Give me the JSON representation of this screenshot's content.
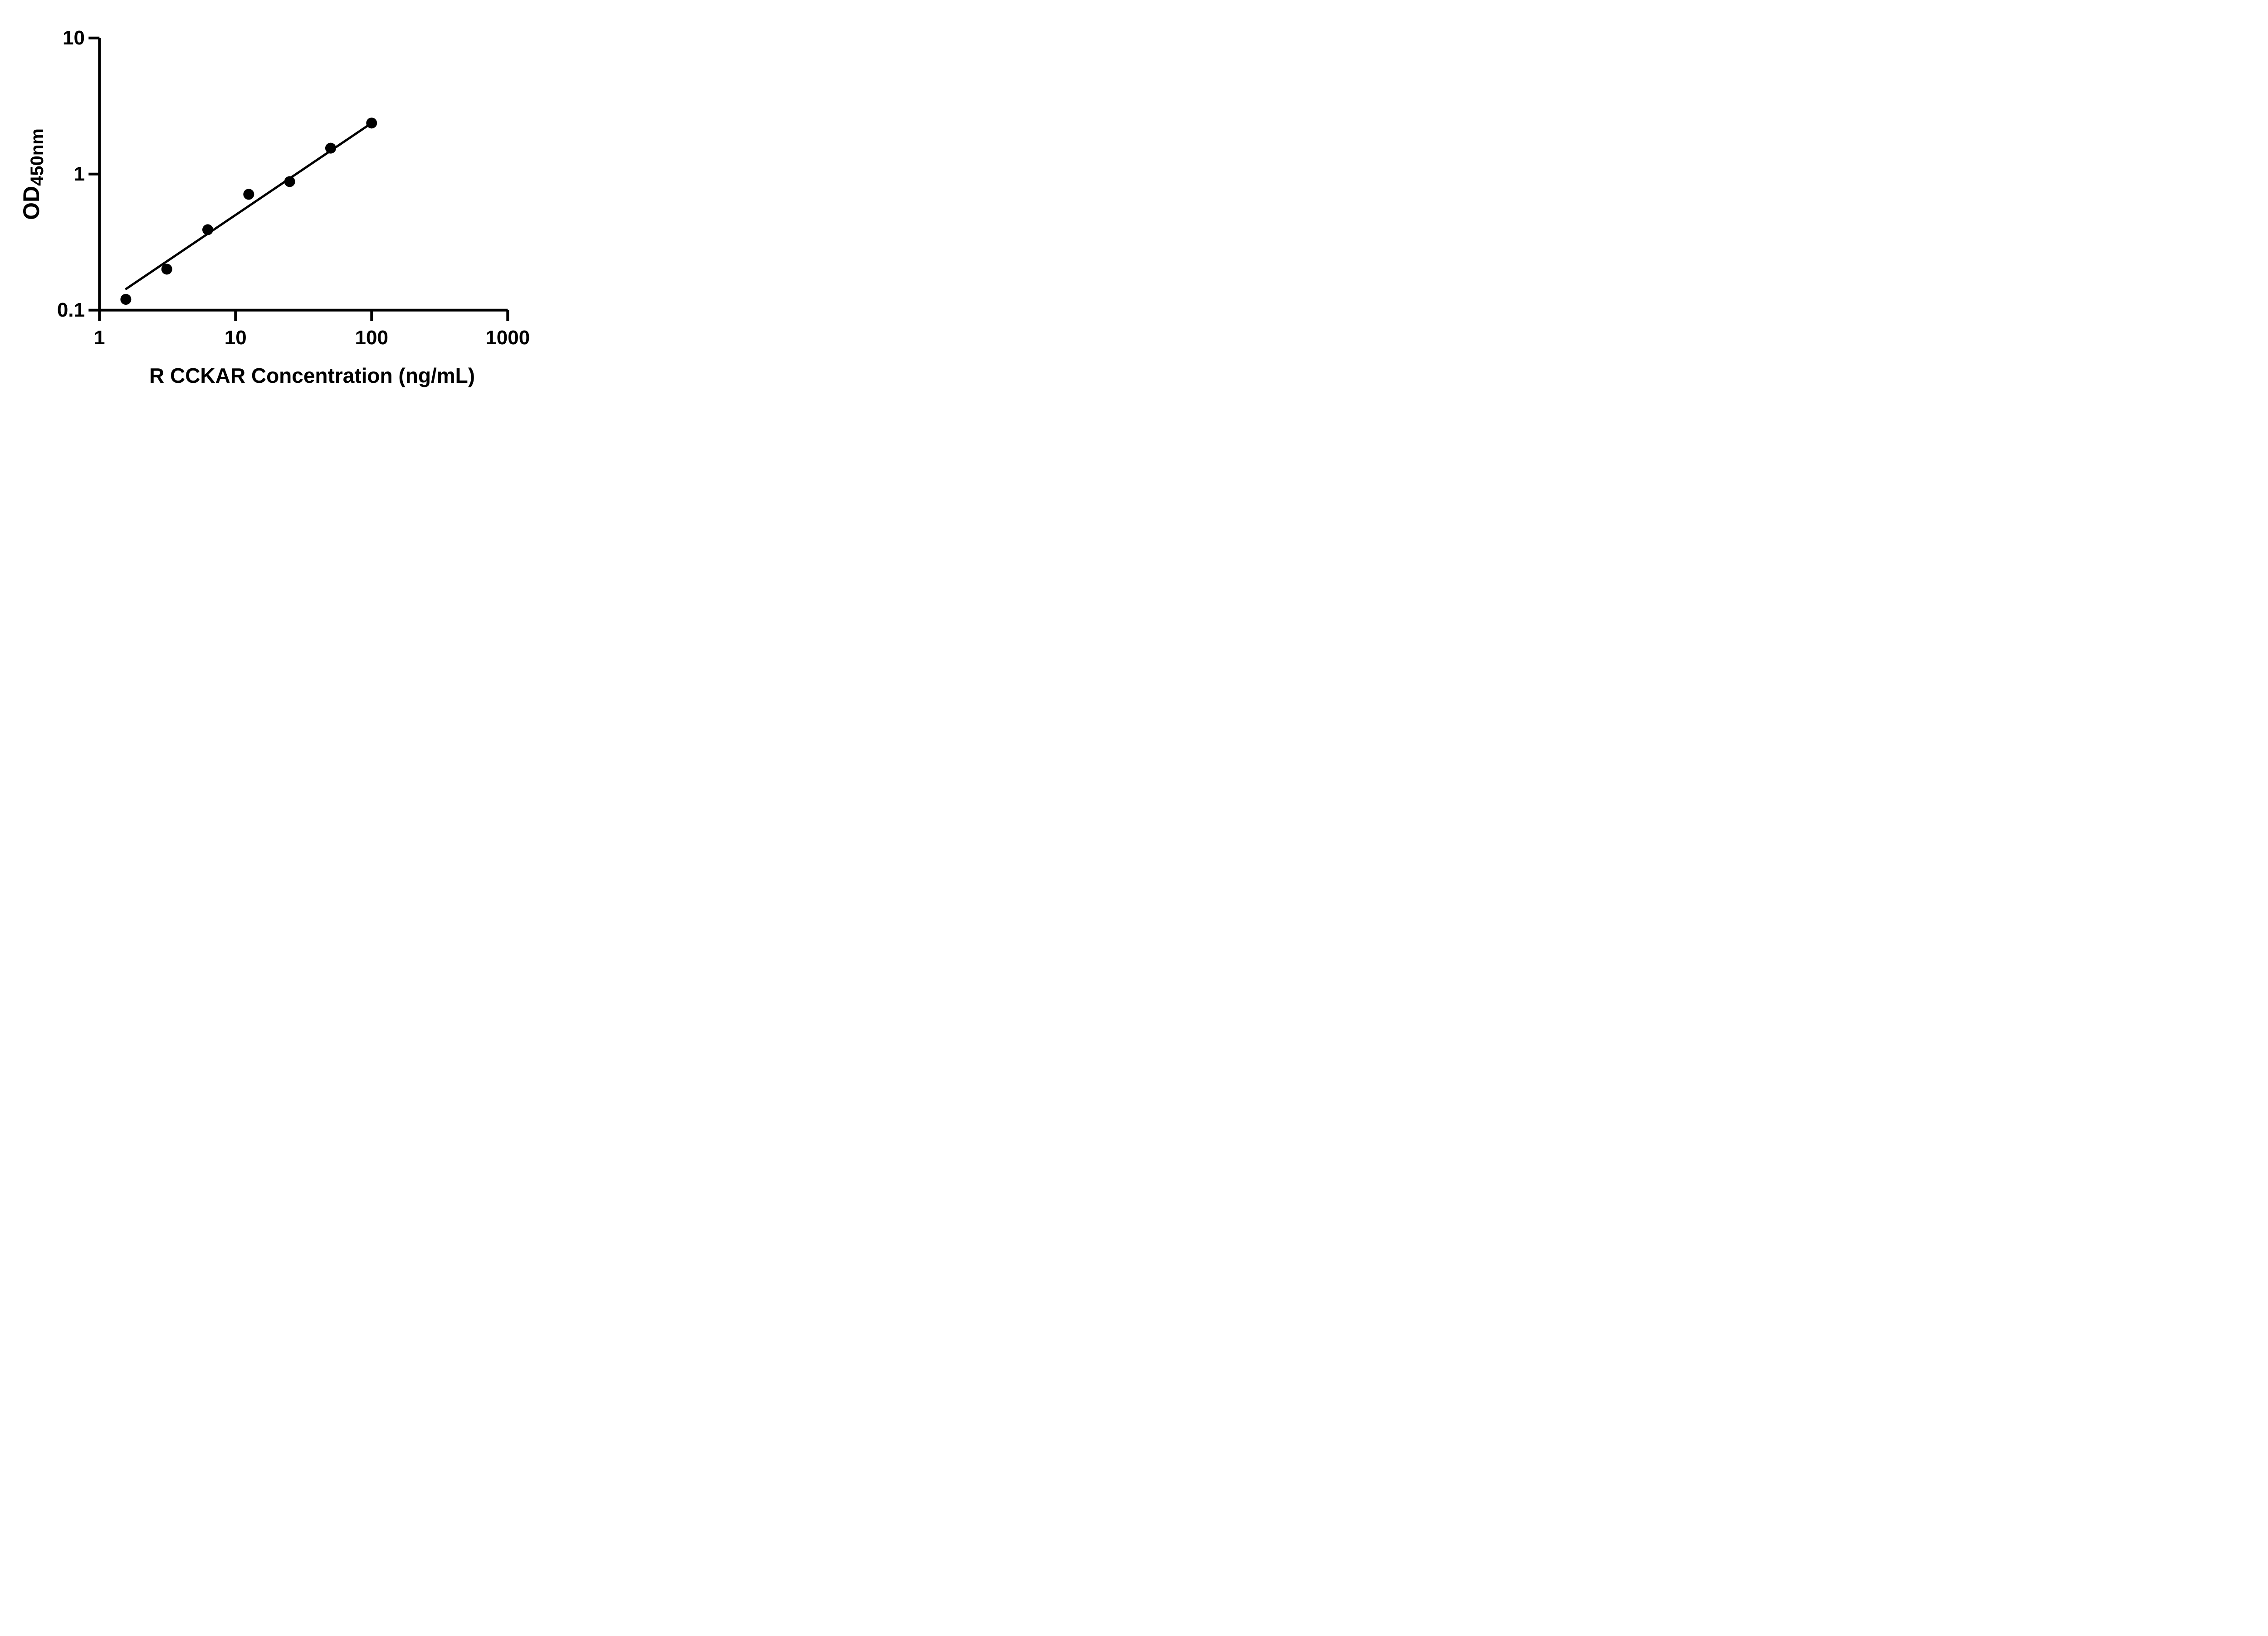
{
  "figure": {
    "background_color": "#ffffff",
    "ink_color": "#000000"
  },
  "y_axis_title": {
    "main": "OD",
    "sub": "450nm"
  },
  "x_axis_title": "R CCKAR Concentration (ng/mL)",
  "chart_data": {
    "type": "scatter",
    "title": "",
    "xlabel": "R CCKAR Concentration (ng/mL)",
    "ylabel": "OD450nm",
    "x_scale": "log",
    "y_scale": "log",
    "xlim": [
      1,
      1000
    ],
    "ylim": [
      0.1,
      10
    ],
    "grid": "off",
    "legend": "none",
    "marker": "filled-circle",
    "color": "#000000",
    "x_ticks": [
      {
        "value": 1,
        "label": "1"
      },
      {
        "value": 10,
        "label": "10"
      },
      {
        "value": 100,
        "label": "100"
      },
      {
        "value": 1000,
        "label": "1000"
      }
    ],
    "y_ticks": [
      {
        "value": 10,
        "label": "10"
      },
      {
        "value": 1,
        "label": "1"
      },
      {
        "value": 0.1,
        "label": "0.1"
      }
    ],
    "points": [
      {
        "conc": 1.5625,
        "od": 0.12
      },
      {
        "conc": 3.125,
        "od": 0.2
      },
      {
        "conc": 6.25,
        "od": 0.39
      },
      {
        "conc": 12.5,
        "od": 0.71
      },
      {
        "conc": 25,
        "od": 0.88
      },
      {
        "conc": 50,
        "od": 1.55
      },
      {
        "conc": 100,
        "od": 2.37
      }
    ],
    "trend_line": {
      "conc1": 1.55,
      "od1": 0.142,
      "conc2": 100,
      "od2": 2.37
    }
  }
}
